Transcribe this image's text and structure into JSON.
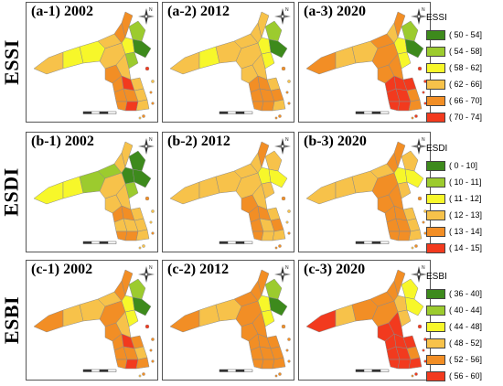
{
  "palette": [
    "#3d8a1c",
    "#9ccb2e",
    "#f7f72a",
    "#f7c24a",
    "#f28e25",
    "#f23a1e"
  ],
  "rows": [
    {
      "label": "ESSI",
      "panels": [
        {
          "title": "(a-1) 2002",
          "classes": [
            3,
            2,
            2,
            3,
            4,
            4,
            2,
            1,
            0,
            1,
            3,
            4,
            3,
            4,
            5,
            3,
            4,
            4,
            3,
            4,
            5,
            3
          ]
        },
        {
          "title": "(a-2) 2012",
          "classes": [
            3,
            2,
            3,
            3,
            3,
            3,
            2,
            1,
            0,
            2,
            3,
            3,
            3,
            4,
            4,
            3,
            4,
            4,
            4,
            4,
            4,
            3
          ]
        },
        {
          "title": "(a-3) 2020",
          "classes": [
            4,
            3,
            3,
            4,
            3,
            4,
            2,
            1,
            0,
            2,
            4,
            4,
            4,
            5,
            5,
            5,
            5,
            5,
            4,
            5,
            5,
            4
          ]
        }
      ],
      "legend": {
        "title": "ESSI",
        "items": [
          "( 50 - 54]",
          "( 54 - 58]",
          "( 58 - 62]",
          "( 62 - 66]",
          "( 66 - 70]",
          "( 70 - 74]"
        ]
      }
    },
    {
      "label": "ESDI",
      "panels": [
        {
          "title": "(b-1) 2002",
          "classes": [
            2,
            2,
            1,
            1,
            3,
            3,
            0,
            0,
            0,
            1,
            3,
            3,
            3,
            4,
            4,
            3,
            3,
            3,
            3,
            4,
            4,
            3
          ]
        },
        {
          "title": "(b-2) 2012",
          "classes": [
            3,
            3,
            3,
            3,
            3,
            4,
            2,
            3,
            2,
            3,
            3,
            4,
            3,
            4,
            4,
            3,
            4,
            3,
            4,
            4,
            3,
            3
          ]
        },
        {
          "title": "(b-3) 2020",
          "classes": [
            3,
            3,
            3,
            3,
            4,
            4,
            2,
            3,
            2,
            3,
            4,
            4,
            4,
            4,
            4,
            3,
            4,
            4,
            3,
            4,
            4,
            3
          ]
        }
      ],
      "legend": {
        "title": "ESDI",
        "items": [
          "( 0 - 10]",
          "( 10 - 11]",
          "( 11 - 12]",
          "( 12 - 13]",
          "( 13 - 14]",
          "( 14 - 15]"
        ]
      }
    },
    {
      "label": "ESBI",
      "panels": [
        {
          "title": "(c-1) 2002",
          "classes": [
            4,
            3,
            3,
            3,
            4,
            4,
            2,
            1,
            0,
            2,
            4,
            4,
            3,
            4,
            5,
            4,
            4,
            4,
            3,
            4,
            5,
            4
          ]
        },
        {
          "title": "(c-2) 2012",
          "classes": [
            4,
            3,
            3,
            4,
            4,
            4,
            2,
            1,
            0,
            2,
            4,
            4,
            4,
            4,
            4,
            4,
            4,
            4,
            4,
            4,
            4,
            4
          ]
        },
        {
          "title": "(c-3) 2020",
          "classes": [
            5,
            3,
            4,
            4,
            4,
            4,
            3,
            2,
            2,
            3,
            4,
            5,
            5,
            5,
            5,
            5,
            5,
            5,
            4,
            5,
            5,
            5
          ]
        }
      ],
      "legend": {
        "title": "ESBI",
        "items": [
          "( 36 - 40]",
          "( 40 - 44]",
          "( 44 - 48]",
          "( 48 - 52]",
          "( 52 - 56]",
          "( 56 - 60]"
        ]
      }
    }
  ],
  "compass_label": "N"
}
